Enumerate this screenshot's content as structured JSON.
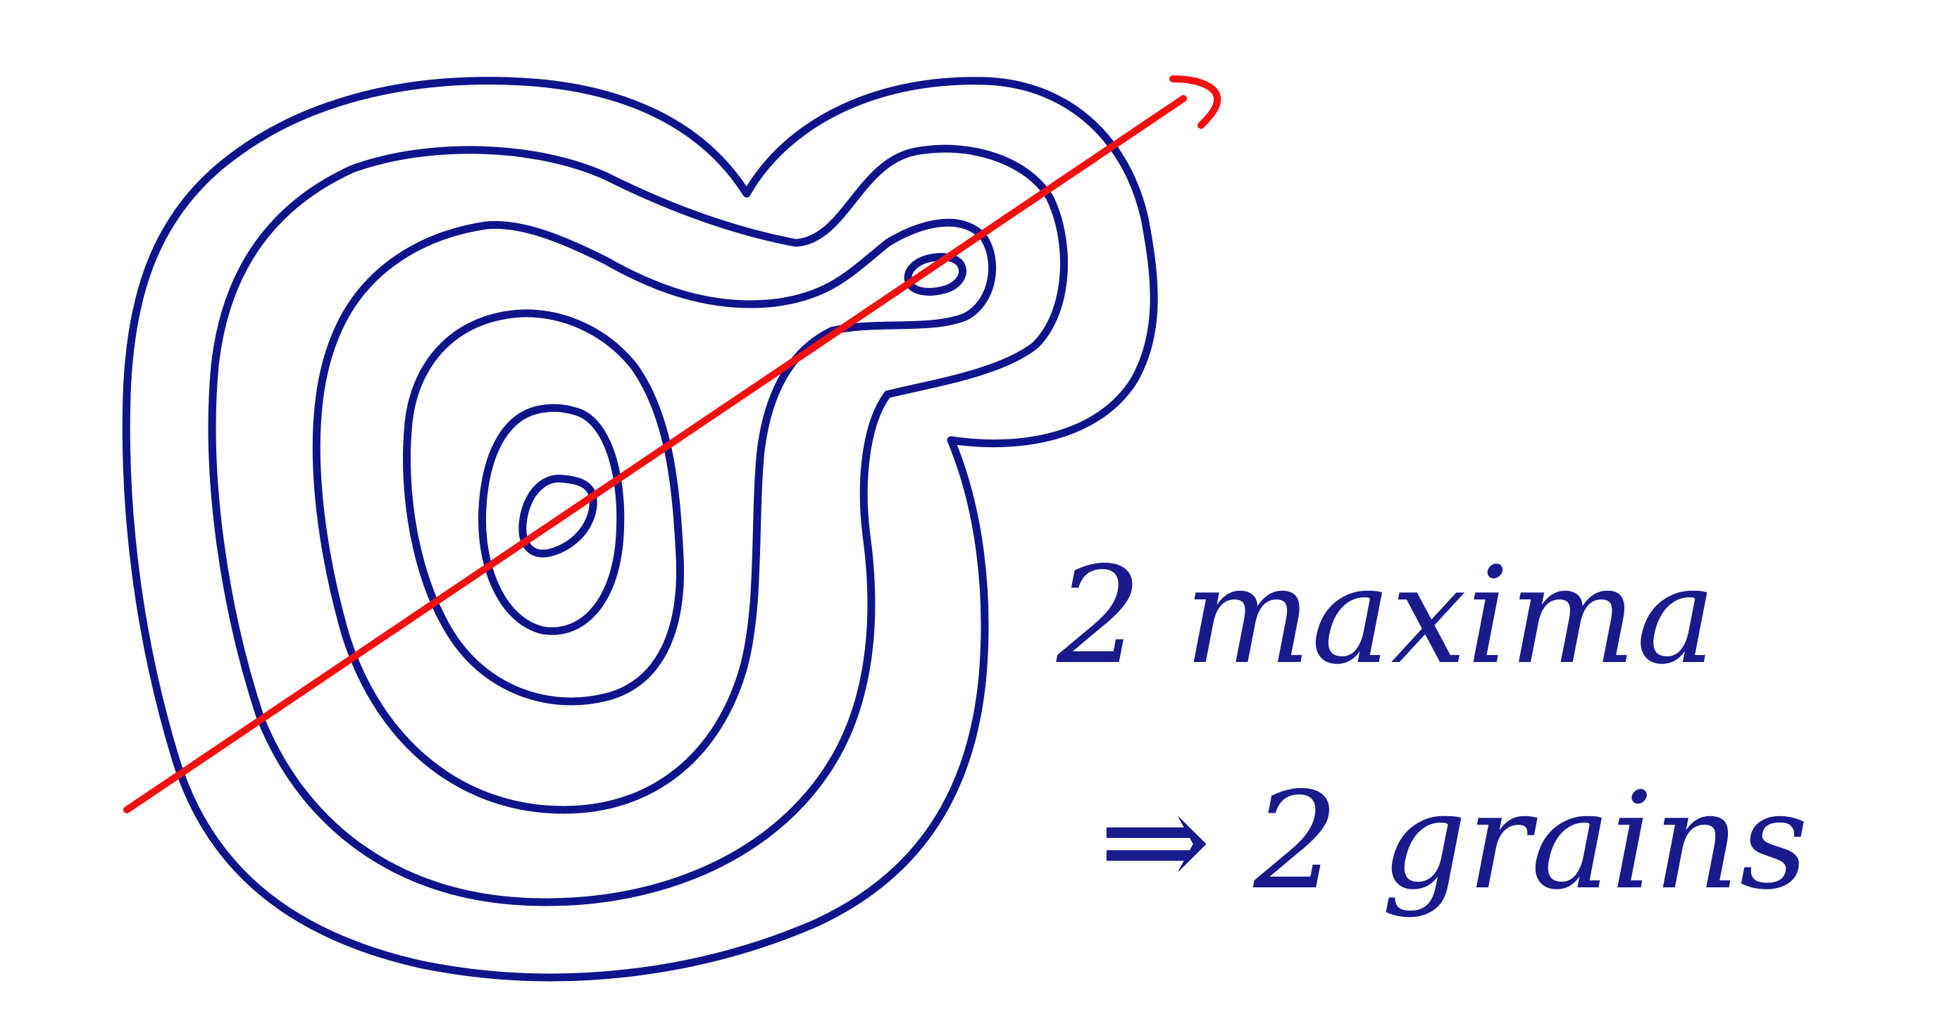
{
  "colors": {
    "contour": "#10148a",
    "line": "#f01010",
    "text": "#1a1a8c",
    "background": "#ffffff"
  },
  "annotation": {
    "line1": "2 maxima",
    "line2": "⇒ 2 grains"
  }
}
